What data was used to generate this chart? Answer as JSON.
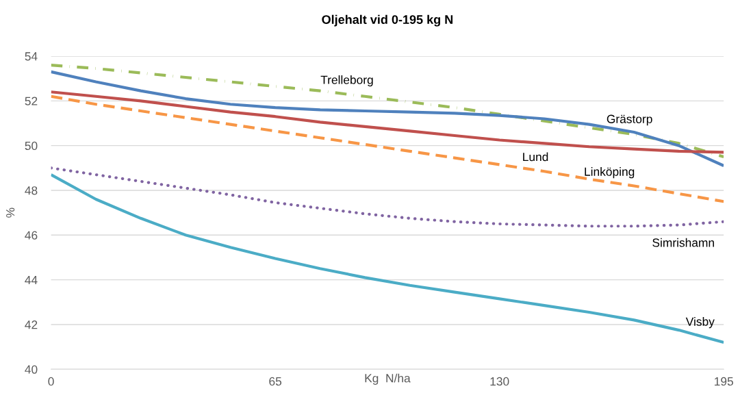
{
  "chart_data": {
    "type": "line",
    "title": "Oljehalt vid 0-195 kg N",
    "xlabel": "Kg  N/ha",
    "ylabel": "%",
    "x": [
      0,
      13,
      26,
      39,
      52,
      65,
      78,
      91,
      104,
      117,
      130,
      143,
      156,
      169,
      182,
      195
    ],
    "series": [
      {
        "name": "Trelleborg",
        "color": "#9bbb59",
        "line_style": "dashdot",
        "values": [
          53.6,
          53.45,
          53.25,
          53.05,
          52.85,
          52.65,
          52.45,
          52.2,
          51.95,
          51.7,
          51.4,
          51.1,
          50.8,
          50.5,
          50.1,
          49.5
        ]
      },
      {
        "name": "Grästorp",
        "color": "#4f81bd",
        "line_style": "solid",
        "values": [
          53.3,
          52.85,
          52.45,
          52.1,
          51.85,
          51.7,
          51.6,
          51.55,
          51.5,
          51.45,
          51.35,
          51.2,
          50.95,
          50.6,
          50.0,
          49.1
        ]
      },
      {
        "name": "Lund",
        "color": "#c0504d",
        "line_style": "solid",
        "values": [
          52.4,
          52.2,
          52.0,
          51.75,
          51.5,
          51.3,
          51.05,
          50.85,
          50.65,
          50.45,
          50.25,
          50.1,
          49.95,
          49.85,
          49.75,
          49.7
        ]
      },
      {
        "name": "Linköping",
        "color": "#f79646",
        "line_style": "dashed",
        "values": [
          52.2,
          51.85,
          51.55,
          51.25,
          50.95,
          50.65,
          50.35,
          50.05,
          49.75,
          49.45,
          49.15,
          48.85,
          48.5,
          48.2,
          47.85,
          47.5
        ]
      },
      {
        "name": "Simrishamn",
        "color": "#8064a2",
        "line_style": "dotted",
        "values": [
          49.0,
          48.7,
          48.4,
          48.1,
          47.8,
          47.45,
          47.2,
          46.95,
          46.75,
          46.6,
          46.5,
          46.45,
          46.4,
          46.4,
          46.45,
          46.6
        ]
      },
      {
        "name": "Visby",
        "color": "#4bacc6",
        "line_style": "solid",
        "values": [
          48.7,
          47.6,
          46.75,
          46.0,
          45.45,
          44.95,
          44.5,
          44.1,
          43.75,
          43.45,
          43.15,
          42.85,
          42.55,
          42.2,
          41.75,
          41.2
        ]
      }
    ],
    "xlim": [
      0,
      195
    ],
    "xticks": [
      0,
      65,
      130,
      195
    ],
    "ylim": [
      40,
      54
    ],
    "yticks": [
      40,
      42,
      44,
      46,
      48,
      50,
      52,
      54
    ],
    "grid": "y",
    "legend": false
  }
}
